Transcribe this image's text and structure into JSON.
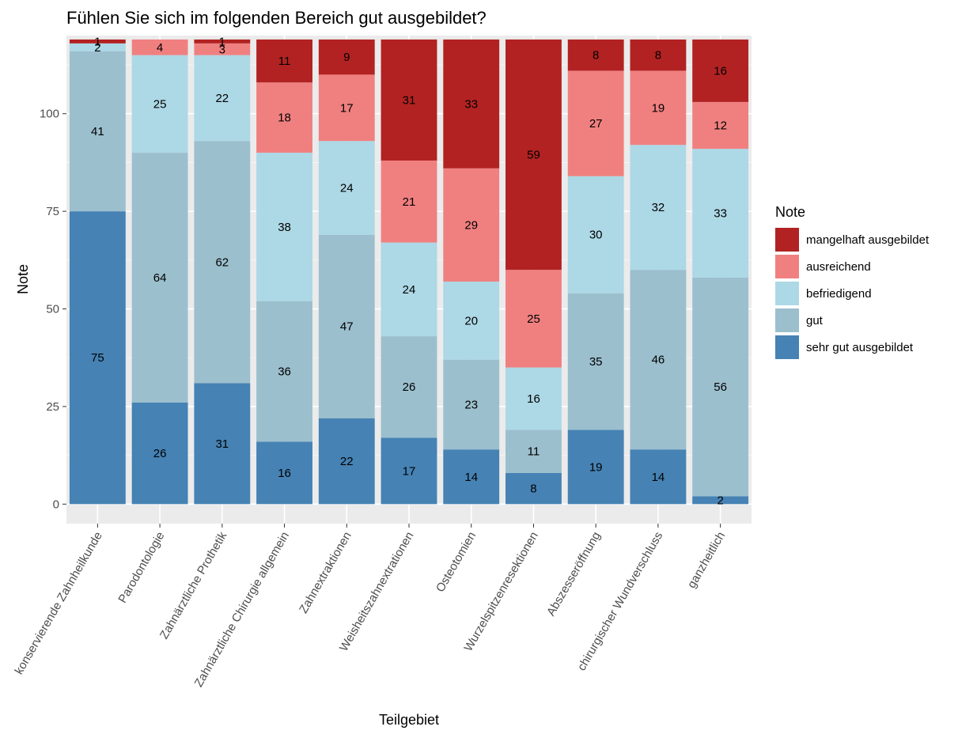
{
  "chart_data": {
    "type": "bar",
    "stacked": true,
    "title": "Fühlen Sie sich im folgenden Bereich gut ausgebildet?",
    "xlabel": "Teilgebiet",
    "ylabel": "Note",
    "ylim": [
      -5,
      120
    ],
    "yticks": [
      0,
      25,
      50,
      75,
      100
    ],
    "grid": true,
    "legend": {
      "title": "Note",
      "position": "right"
    },
    "categories": [
      "konservierende Zahnheilkunde",
      "Parodontologie",
      "Zahnärztliche Prothetik",
      "Zahnärztliche Chirurgie allgemein",
      "Zahnextraktionen",
      "Weisheitszahnextrationen",
      "Osteotomien",
      "Wurzelspitzenresektionen",
      "Abszesseröffnung",
      "chirurgischer Wundverschluss",
      "ganzheitlich"
    ],
    "series": [
      {
        "name": "sehr gut ausgebildet",
        "color": "#4682B4",
        "values": [
          75,
          26,
          31,
          16,
          22,
          17,
          14,
          8,
          19,
          14,
          2
        ]
      },
      {
        "name": "gut",
        "color": "#9BBFCD",
        "values": [
          41,
          64,
          62,
          36,
          47,
          26,
          23,
          11,
          35,
          46,
          56
        ]
      },
      {
        "name": "befriedigend",
        "color": "#ADD8E6",
        "values": [
          2,
          25,
          22,
          38,
          24,
          24,
          20,
          16,
          30,
          32,
          33
        ]
      },
      {
        "name": "ausreichend",
        "color": "#F08080",
        "values": [
          null,
          4,
          3,
          18,
          17,
          21,
          29,
          25,
          27,
          19,
          12
        ]
      },
      {
        "name": "mangelhaft ausgebildet",
        "color": "#B22222",
        "values": [
          1,
          null,
          1,
          11,
          9,
          31,
          33,
          59,
          8,
          8,
          16
        ]
      }
    ],
    "legend_order": [
      "mangelhaft ausgebildet",
      "ausreichend",
      "befriedigend",
      "gut",
      "sehr gut ausgebildet"
    ]
  }
}
